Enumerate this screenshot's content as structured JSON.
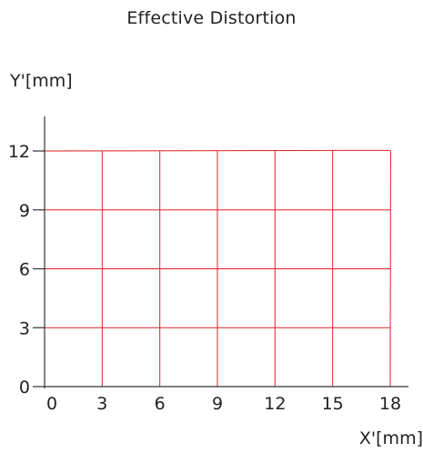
{
  "chart_data": {
    "type": "line",
    "title": "Effective Distortion",
    "xlabel": "X'[mm]",
    "ylabel": "Y'[mm]",
    "xlim": [
      0,
      18
    ],
    "ylim": [
      0,
      12
    ],
    "xticks": [
      0,
      3,
      6,
      9,
      12,
      15,
      18
    ],
    "yticks": [
      0,
      3,
      6,
      9,
      12
    ],
    "grid": false,
    "series": [
      {
        "values": [
          {
            "x": 0,
            "y": 0
          },
          {
            "x": 18,
            "y": 0
          }
        ]
      },
      {
        "values": [
          {
            "x": 0,
            "y": 3
          },
          {
            "x": 18,
            "y": 3
          }
        ]
      },
      {
        "values": [
          {
            "x": 0,
            "y": 6
          },
          {
            "x": 18,
            "y": 6
          }
        ]
      },
      {
        "values": [
          {
            "x": 0,
            "y": 9
          },
          {
            "x": 18,
            "y": 9
          }
        ]
      },
      {
        "values": [
          {
            "x": 0,
            "y": 12
          },
          {
            "x": 18,
            "y": 12.03
          }
        ]
      },
      {
        "values": [
          {
            "x": 0,
            "y": 0
          },
          {
            "x": 0,
            "y": 12
          }
        ]
      },
      {
        "values": [
          {
            "x": 3,
            "y": 0
          },
          {
            "x": 3,
            "y": 12
          }
        ]
      },
      {
        "values": [
          {
            "x": 6,
            "y": 0
          },
          {
            "x": 6,
            "y": 12
          }
        ]
      },
      {
        "values": [
          {
            "x": 9,
            "y": 0
          },
          {
            "x": 9,
            "y": 12
          }
        ]
      },
      {
        "values": [
          {
            "x": 12,
            "y": 0
          },
          {
            "x": 12,
            "y": 12.03
          }
        ]
      },
      {
        "values": [
          {
            "x": 15,
            "y": 0
          },
          {
            "x": 15,
            "y": 12.03
          }
        ]
      },
      {
        "values": [
          {
            "x": 18,
            "y": 0
          },
          {
            "x": 18.02,
            "y": 12.03
          }
        ]
      }
    ],
    "colors": {
      "distorted_grid": "#e0202a",
      "axis": "#333333"
    }
  }
}
